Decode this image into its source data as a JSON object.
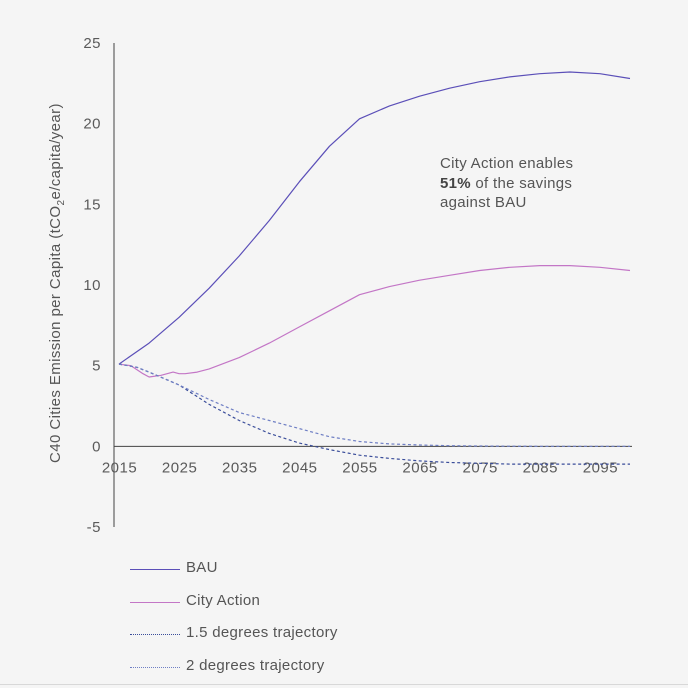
{
  "chart_data": {
    "type": "line",
    "title": "",
    "xlabel": "",
    "ylabel": "C40 Cities Emission per Capita (tCO₂e/capita/year)",
    "ylabel_parts": {
      "pre": "C40 Cities Emission per Capita (tCO",
      "sub": "2",
      "post": "e/capita/year)"
    },
    "xlim": [
      2015,
      2100
    ],
    "ylim": [
      -5,
      25
    ],
    "x_ticks": [
      2015,
      2025,
      2035,
      2045,
      2055,
      2065,
      2075,
      2085,
      2095
    ],
    "y_ticks": [
      -5,
      0,
      5,
      10,
      15,
      20,
      25
    ],
    "grid": false,
    "legend_position": "bottom-left",
    "series": [
      {
        "name": "BAU",
        "color": "#5b4fb8",
        "dash": "solid",
        "x": [
          2015,
          2020,
          2025,
          2030,
          2035,
          2040,
          2045,
          2050,
          2055,
          2060,
          2065,
          2070,
          2075,
          2080,
          2085,
          2090,
          2095,
          2100
        ],
        "y": [
          5.1,
          6.4,
          8.0,
          9.8,
          11.8,
          14.0,
          16.4,
          18.6,
          20.3,
          21.1,
          21.7,
          22.2,
          22.6,
          22.9,
          23.1,
          23.2,
          23.1,
          22.8
        ]
      },
      {
        "name": "City Action",
        "color": "#c376c6",
        "dash": "solid",
        "x": [
          2015,
          2017,
          2019,
          2020,
          2022,
          2024,
          2025,
          2026,
          2028,
          2030,
          2035,
          2040,
          2045,
          2050,
          2055,
          2060,
          2065,
          2070,
          2075,
          2080,
          2085,
          2090,
          2095,
          2100
        ],
        "y": [
          5.1,
          5.0,
          4.5,
          4.3,
          4.4,
          4.6,
          4.5,
          4.5,
          4.6,
          4.8,
          5.5,
          6.4,
          7.4,
          8.4,
          9.4,
          9.9,
          10.3,
          10.6,
          10.9,
          11.1,
          11.2,
          11.2,
          11.1,
          10.9
        ]
      },
      {
        "name": "1.5 degrees trajectory",
        "color": "#3a4d9a",
        "dash": "dotted",
        "x": [
          2015,
          2018,
          2020,
          2025,
          2030,
          2035,
          2040,
          2045,
          2050,
          2055,
          2060,
          2065,
          2070,
          2075,
          2080,
          2085,
          2090,
          2095,
          2100
        ],
        "y": [
          5.1,
          4.9,
          4.6,
          3.8,
          2.6,
          1.6,
          0.8,
          0.2,
          -0.2,
          -0.55,
          -0.75,
          -0.9,
          -1.0,
          -1.05,
          -1.1,
          -1.1,
          -1.1,
          -1.1,
          -1.1
        ]
      },
      {
        "name": "2 degrees trajectory",
        "color": "#6f7fc4",
        "dash": "dotted",
        "x": [
          2015,
          2018,
          2020,
          2025,
          2030,
          2035,
          2040,
          2045,
          2050,
          2055,
          2060,
          2065,
          2070,
          2075,
          2080,
          2085,
          2090,
          2095,
          2100
        ],
        "y": [
          5.1,
          4.9,
          4.6,
          3.8,
          2.9,
          2.1,
          1.6,
          1.1,
          0.6,
          0.3,
          0.15,
          0.08,
          0.04,
          0.02,
          0.01,
          0.0,
          0.0,
          0.0,
          0.0
        ]
      }
    ],
    "annotation": {
      "line1": "City Action enables",
      "bold": "51%",
      "line2_rest": " of the savings",
      "line3": "against BAU"
    }
  }
}
